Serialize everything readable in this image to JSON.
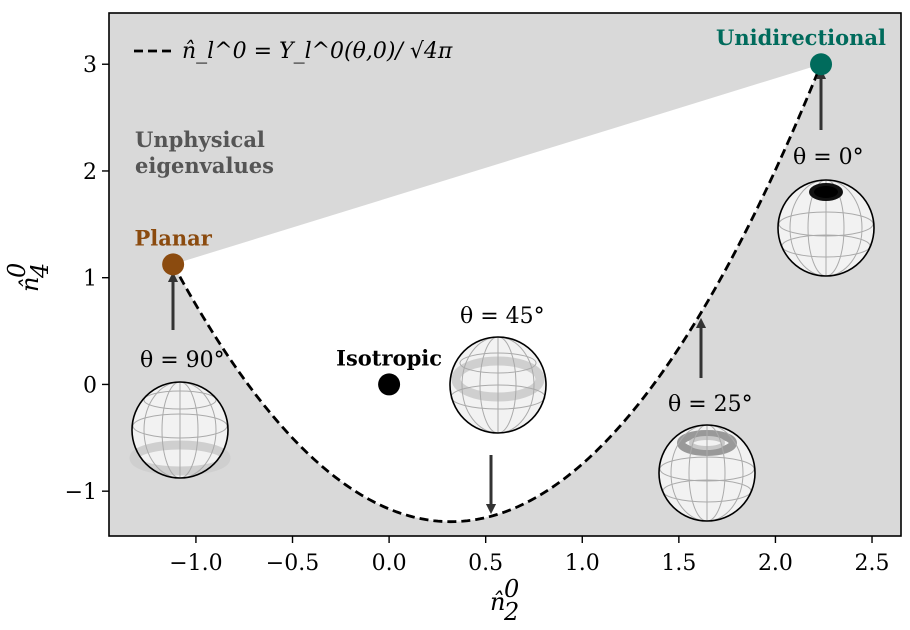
{
  "chart_data": {
    "type": "scatter",
    "xlabel": "n̂",
    "xlabel_sub": "2",
    "xlabel_sup": "0",
    "ylabel": "n̂",
    "ylabel_sub": "4",
    "ylabel_sup": "0",
    "xlim": [
      -1.45,
      2.65
    ],
    "ylim": [
      -1.42,
      3.48
    ],
    "xticks": [
      -1.0,
      -0.5,
      0.0,
      0.5,
      1.0,
      1.5,
      2.0,
      2.5
    ],
    "xtick_labels": [
      "−1.0",
      "−0.5",
      "0.0",
      "0.5",
      "1.0",
      "1.5",
      "2.0",
      "2.5"
    ],
    "yticks": [
      -1,
      0,
      1,
      2,
      3
    ],
    "ytick_labels": [
      "−1",
      "0",
      "1",
      "2",
      "3"
    ],
    "grid": false,
    "legend_position": "top-left",
    "legend": {
      "label": "n̂_l^0 = Y_l^0(θ,0)/ √4π"
    },
    "curve": {
      "name": "n̂_l^0 = Y_l^0(θ,0)/ √4π",
      "style": "dashed",
      "color": "#000000",
      "description": "parametric curve x = √5·P2(cosθ), y = 3·P4(cosθ)"
    },
    "points": [
      {
        "key": "planar",
        "label": "Planar",
        "x": -1.118,
        "y": 1.125,
        "color": "#8b4b0f"
      },
      {
        "key": "isotropic",
        "label": "Isotropic",
        "x": 0.0,
        "y": 0.0,
        "color": "#000000"
      },
      {
        "key": "unidirectional",
        "label": "Unidirectional",
        "x": 2.236,
        "y": 3.0,
        "color": "#006b5c"
      }
    ],
    "regions": {
      "unphysical_label": [
        "Unphysical",
        "eigenvalues"
      ],
      "unphysical_color": "#d9d9d9",
      "physical_color": "#ffffff"
    },
    "annotations": [
      {
        "key": "theta90",
        "label": "θ = 90°",
        "x": -1.118,
        "y": 1.125
      },
      {
        "key": "theta45",
        "label": "θ = 45°",
        "x": 0.559,
        "y": -1.2
      },
      {
        "key": "theta25",
        "label": "θ = 25°",
        "x": 1.616,
        "y": 0.6
      },
      {
        "key": "theta0",
        "label": "θ = 0°",
        "x": 2.236,
        "y": 3.0
      }
    ]
  }
}
